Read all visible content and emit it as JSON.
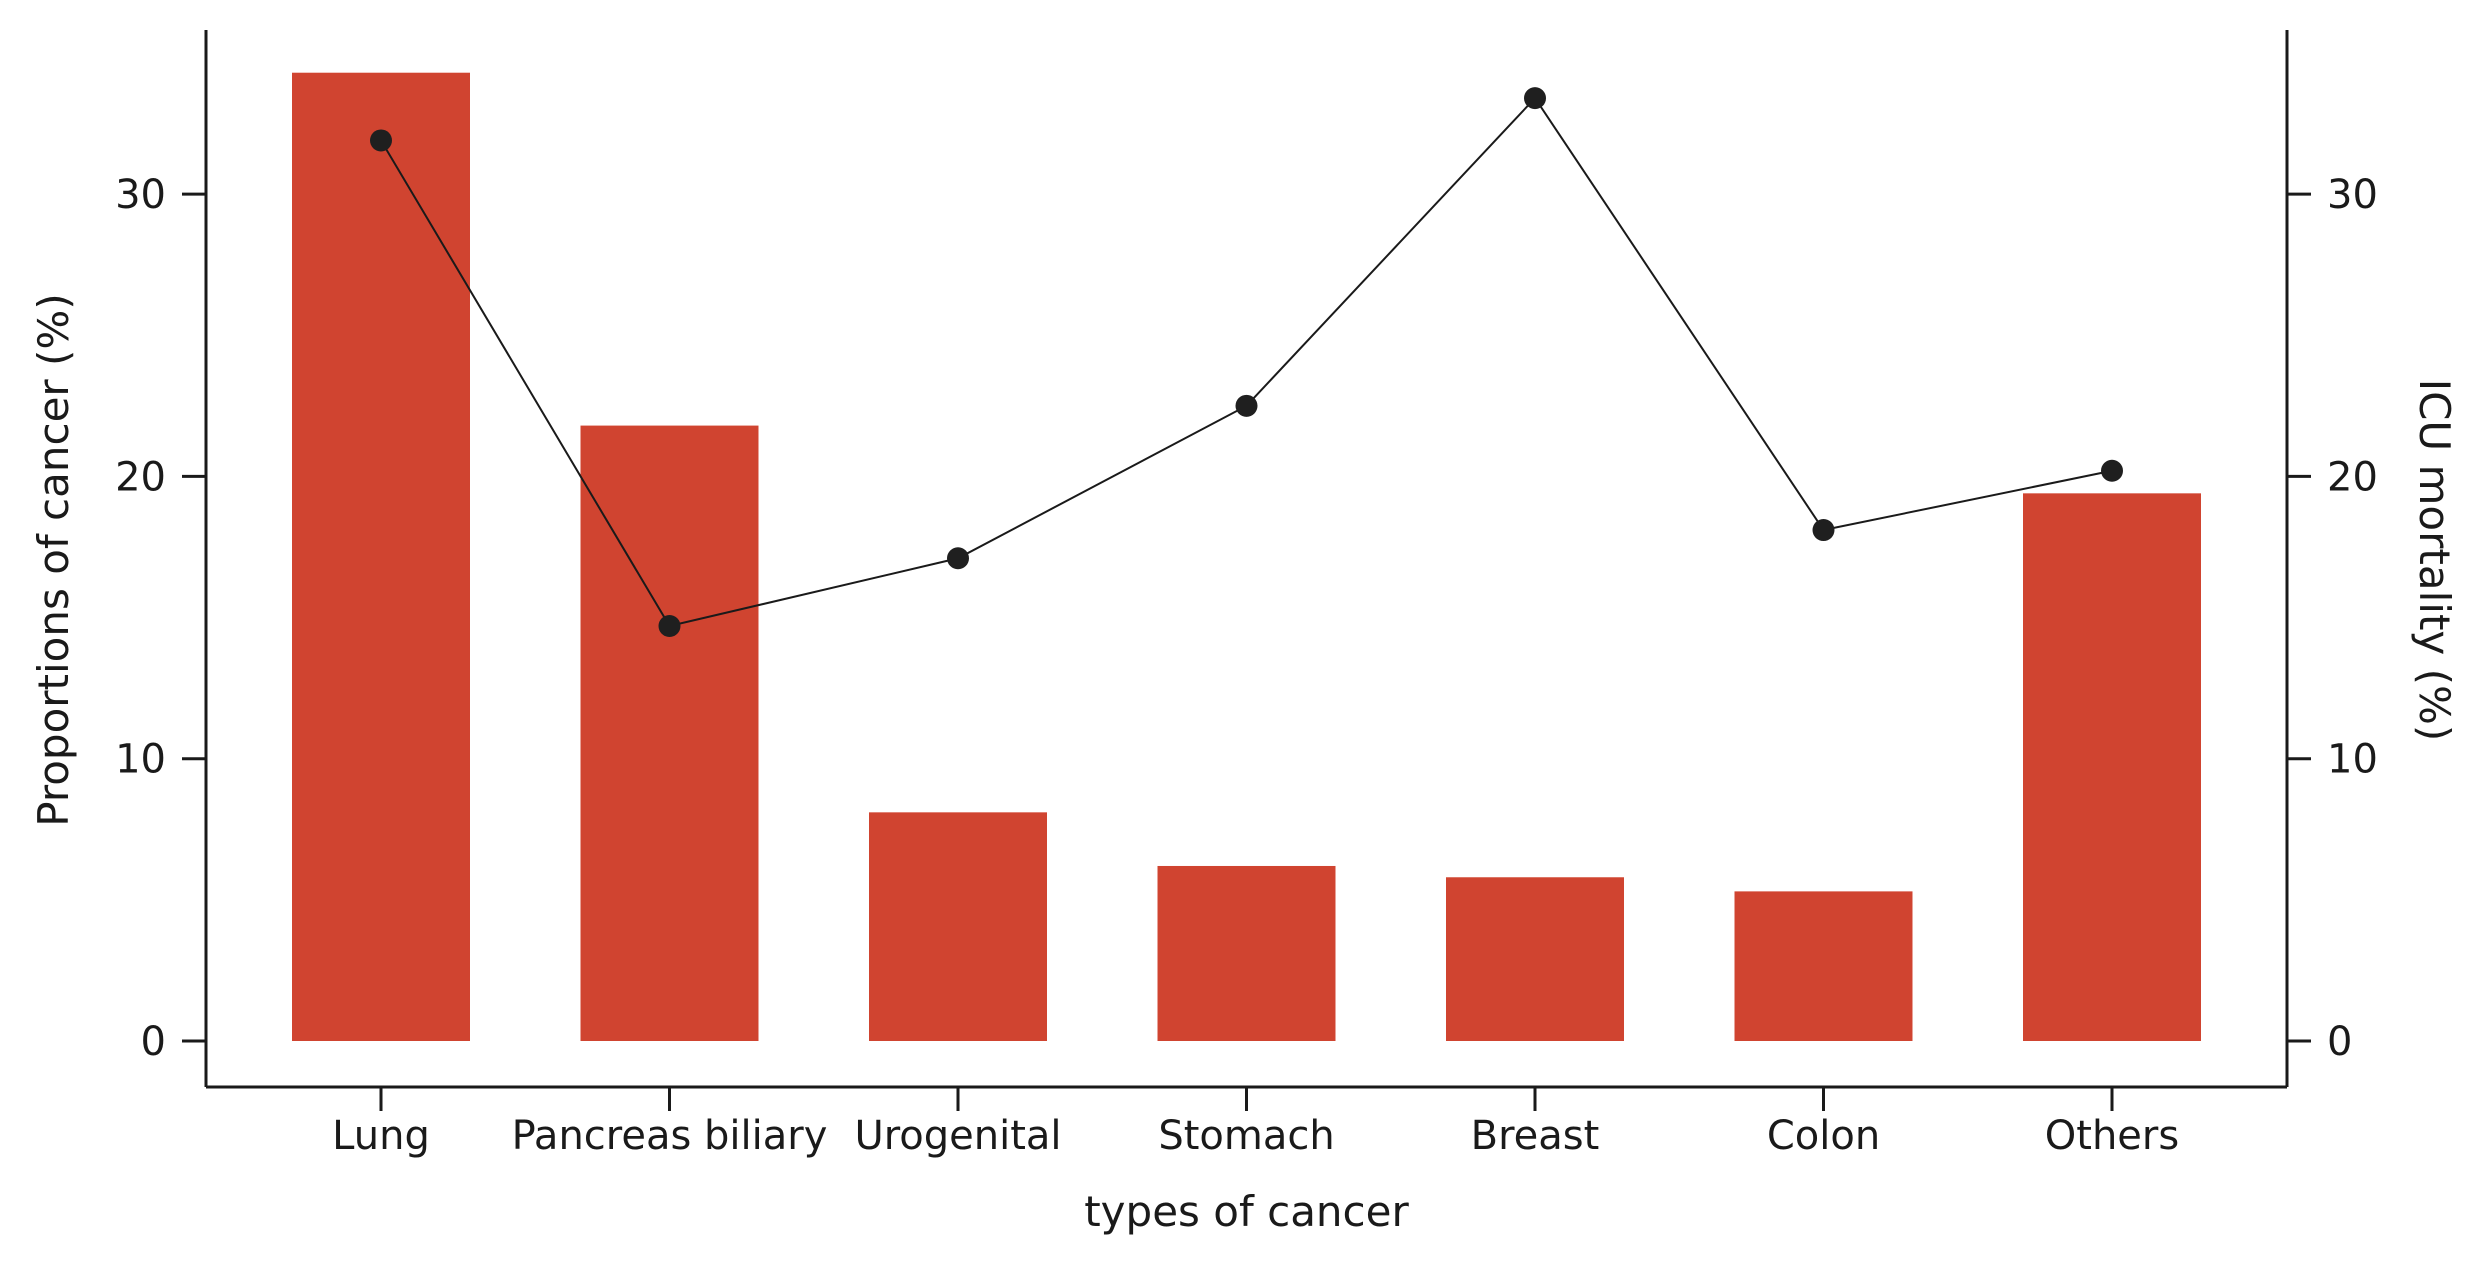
{
  "chart_data": {
    "type": "bar",
    "title": "",
    "xlabel": "types of cancer",
    "ylabel": "Proportions of cancer (%)",
    "y2label": "ICU mortality (%)",
    "categories": [
      "Lung",
      "Pancreas biliary",
      "Urogenital",
      "Stomach",
      "Breast",
      "Colon",
      "Others"
    ],
    "series": [
      {
        "type": "bar",
        "axis": "left",
        "values": [
          34.3,
          21.8,
          8.1,
          6.2,
          5.8,
          5.3,
          19.4
        ]
      },
      {
        "type": "line",
        "axis": "right",
        "values": [
          31.9,
          14.7,
          17.1,
          22.5,
          33.4,
          18.1,
          20.2
        ]
      }
    ],
    "ylim": [
      -1.6,
      36.0
    ],
    "y2lim": [
      -1.6,
      36.0
    ],
    "yticks": [
      0,
      10,
      20,
      30
    ],
    "y2ticks": [
      0,
      10,
      20,
      30
    ],
    "grid": false,
    "colors": {
      "bar": "#d04430",
      "line": "#1a1a1a",
      "marker": "#1f1f1f"
    }
  }
}
